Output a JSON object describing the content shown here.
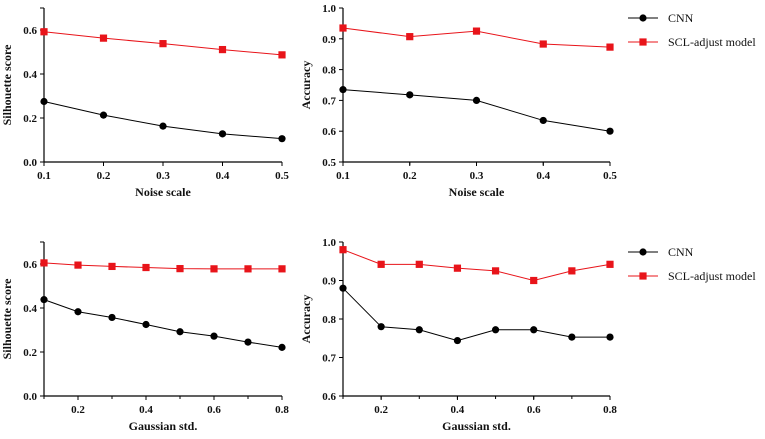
{
  "chart_data": [
    {
      "type": "line",
      "panel": "top-left",
      "title": "",
      "xlabel": "Noise scale",
      "ylabel": "Silhouette score",
      "x": [
        0.1,
        0.2,
        0.3,
        0.4,
        0.5
      ],
      "xlim": [
        0.1,
        0.5
      ],
      "ylim": [
        0.0,
        0.7
      ],
      "xticks": [
        "0.1",
        "0.2",
        "0.3",
        "0.4",
        "0.5"
      ],
      "yticks": [
        "0.0",
        "0.2",
        "0.4",
        "0.6"
      ],
      "series": [
        {
          "name": "CNN",
          "marker": "circle",
          "color": "#000000",
          "values": [
            0.275,
            0.213,
            0.163,
            0.128,
            0.106
          ]
        },
        {
          "name": "SCL-adjust model",
          "marker": "square",
          "color": "#e8141a",
          "values": [
            0.592,
            0.563,
            0.538,
            0.511,
            0.487
          ]
        }
      ],
      "legend": "none"
    },
    {
      "type": "line",
      "panel": "top-right",
      "title": "",
      "xlabel": "Noise scale",
      "ylabel": "Accuracy",
      "x": [
        0.1,
        0.2,
        0.3,
        0.4,
        0.5
      ],
      "xlim": [
        0.1,
        0.5
      ],
      "ylim": [
        0.5,
        1.0
      ],
      "xticks": [
        "0.1",
        "0.2",
        "0.3",
        "0.4",
        "0.5"
      ],
      "yticks": [
        "0.5",
        "0.6",
        "0.7",
        "0.8",
        "0.9",
        "1.0"
      ],
      "series": [
        {
          "name": "CNN",
          "marker": "circle",
          "color": "#000000",
          "values": [
            0.735,
            0.718,
            0.7,
            0.635,
            0.6
          ]
        },
        {
          "name": "SCL-adjust model",
          "marker": "square",
          "color": "#e8141a",
          "values": [
            0.935,
            0.907,
            0.925,
            0.883,
            0.873
          ]
        }
      ],
      "legend": "right"
    },
    {
      "type": "line",
      "panel": "bottom-left",
      "title": "",
      "xlabel": "Gaussian std.",
      "ylabel": "Silhouette score",
      "x": [
        0.1,
        0.2,
        0.3,
        0.4,
        0.5,
        0.6,
        0.7,
        0.8
      ],
      "xlim": [
        0.1,
        0.8
      ],
      "ylim": [
        0.0,
        0.7
      ],
      "xticks": [
        "0.2",
        "0.4",
        "0.6",
        "0.8"
      ],
      "yticks": [
        "0.0",
        "0.2",
        "0.4",
        "0.6"
      ],
      "series": [
        {
          "name": "CNN",
          "marker": "circle",
          "color": "#000000",
          "values": [
            0.438,
            0.383,
            0.357,
            0.325,
            0.292,
            0.272,
            0.245,
            0.221
          ]
        },
        {
          "name": "SCL-adjust model",
          "marker": "square",
          "color": "#e8141a",
          "values": [
            0.605,
            0.595,
            0.589,
            0.584,
            0.579,
            0.578,
            0.578,
            0.578
          ]
        }
      ],
      "legend": "none"
    },
    {
      "type": "line",
      "panel": "bottom-right",
      "title": "",
      "xlabel": "Gaussian std.",
      "ylabel": "Accuracy",
      "x": [
        0.1,
        0.2,
        0.3,
        0.4,
        0.5,
        0.6,
        0.7,
        0.8
      ],
      "xlim": [
        0.1,
        0.8
      ],
      "ylim": [
        0.6,
        1.0
      ],
      "xticks": [
        "0.2",
        "0.4",
        "0.6",
        "0.8"
      ],
      "yticks": [
        "0.6",
        "0.7",
        "0.8",
        "0.9",
        "1.0"
      ],
      "series": [
        {
          "name": "CNN",
          "marker": "circle",
          "color": "#000000",
          "values": [
            0.88,
            0.78,
            0.772,
            0.744,
            0.772,
            0.772,
            0.753,
            0.753
          ]
        },
        {
          "name": "SCL-adjust model",
          "marker": "square",
          "color": "#e8141a",
          "values": [
            0.98,
            0.942,
            0.942,
            0.932,
            0.925,
            0.9,
            0.925,
            0.942
          ]
        }
      ],
      "legend": "right"
    }
  ]
}
